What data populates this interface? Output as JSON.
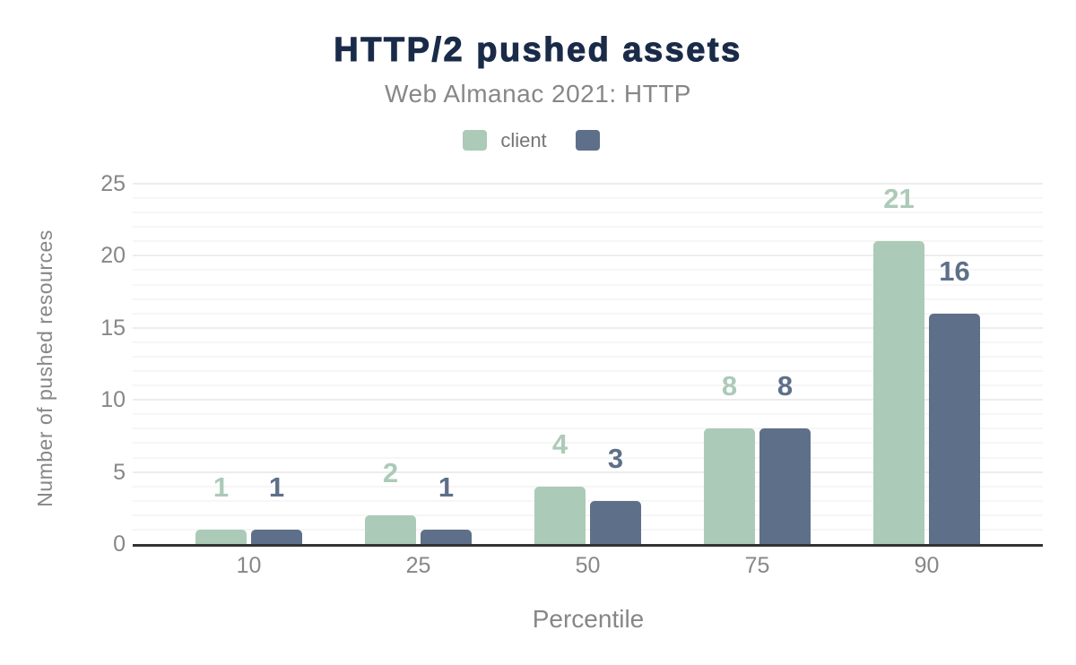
{
  "title": "HTTP/2 pushed assets",
  "subtitle": "Web Almanac 2021: HTTP",
  "colors": {
    "title_navy": "#1a2b49",
    "secondary_text": "#878787",
    "legend_text": "#757575",
    "axis_line": "#333333",
    "grid_minor": "#f6f6f6",
    "grid_major": "#ededed",
    "series_client": "#accab8",
    "series_unnamed": "#5e7089"
  },
  "legend": {
    "items": [
      {
        "label": "client",
        "color": "#accab8"
      },
      {
        "label": "",
        "color": "#5e7089"
      }
    ]
  },
  "chart_data": {
    "type": "bar",
    "title": "HTTP/2 pushed assets",
    "subtitle": "Web Almanac 2021: HTTP",
    "categories": [
      "10",
      "25",
      "50",
      "75",
      "90"
    ],
    "series": [
      {
        "name": "client",
        "color": "#accab8",
        "values": [
          1,
          2,
          4,
          8,
          21
        ]
      },
      {
        "name": "",
        "color": "#5e7089",
        "values": [
          1,
          1,
          3,
          8,
          16
        ]
      }
    ],
    "xlabel": "Percentile",
    "ylabel": "Number of pushed resources",
    "ylim": [
      0,
      25
    ],
    "yticks": [
      0,
      5,
      10,
      15,
      20,
      25
    ],
    "grid": "horizontal minor every 1 unit, major every 5 units",
    "legend_position": "top",
    "data_labels": "above bars, colored per series"
  }
}
